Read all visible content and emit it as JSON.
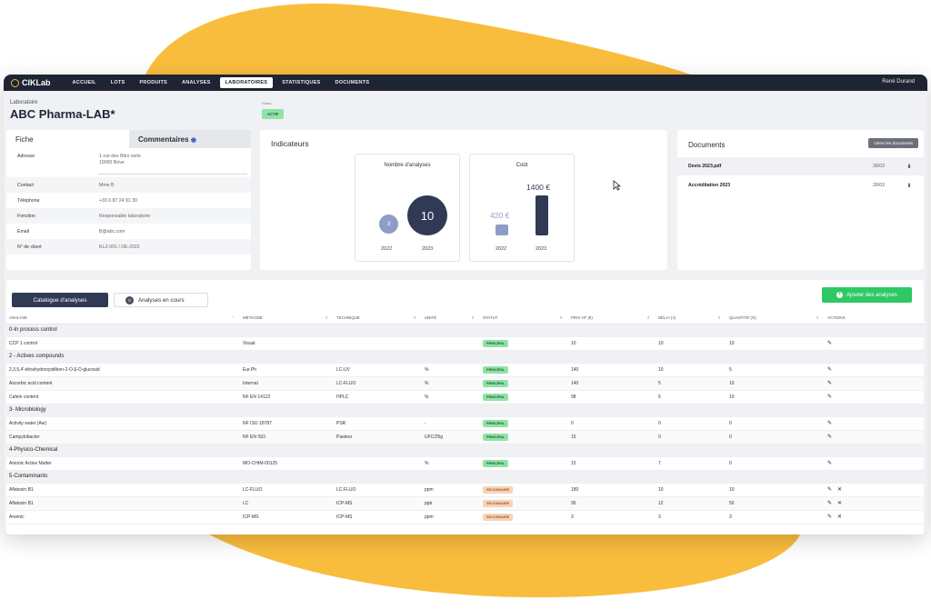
{
  "nav": {
    "brand": "ClKLab",
    "items": [
      "ACCUEIL",
      "LOTS",
      "PRODUITS",
      "ANALYSES",
      "LABORATOIRES",
      "STATISTIQUES",
      "DOCUMENTS"
    ],
    "active": "LABORATOIRES",
    "user": "René Durand"
  },
  "header": {
    "subtitle": "Laboratoire",
    "title": "ABC Pharma-LAB*",
    "status_label": "Statut",
    "status": "ACTIF"
  },
  "fiche": {
    "tab_fiche": "Fiche",
    "tab_comments": "Commentaires",
    "address_label": "Adresse",
    "address_line1": "1 rue des Blés verts",
    "address_line2": "19000 Brive",
    "rows": [
      {
        "k": "Contact",
        "v": "Mme B"
      },
      {
        "k": "Téléphone",
        "v": "+33 6 87 24 91 30"
      },
      {
        "k": "Fonction",
        "v": "Responsable laboratoire"
      },
      {
        "k": "Email",
        "v": "B@abc.com"
      },
      {
        "k": "N° de client",
        "v": "KLZ-001 / DE-2022"
      }
    ]
  },
  "indicateurs": {
    "title": "Indicateurs",
    "nb_title": "Nombre d'analyses",
    "nb_2022": "3",
    "nb_2023": "10",
    "cout_title": "Coût",
    "cout_2022": "420 €",
    "cout_2023": "1400 €",
    "cout_2022_value": 420,
    "cout_2023_value": 1400,
    "year_a": "2022",
    "year_b": "2023"
  },
  "documents": {
    "title": "Documents",
    "manage": "Gérer les documents",
    "items": [
      {
        "name": "Devis 2023.pdf",
        "date": "28/03"
      },
      {
        "name": "Accréditation 2023",
        "date": "28/03"
      }
    ]
  },
  "catalogue": {
    "tab_catalogue": "Catalogue d'analyses",
    "tab_encours": "Analyses en cours",
    "encours_count": "0",
    "add_button": "Ajouter des analyses",
    "columns": [
      "ANALYSE",
      "MÉTHODE",
      "TECHNIQUE",
      "UNITÉ",
      "STATUT",
      "PRIX HT (€)",
      "DÉLAI (J)",
      "QUANTITÉ (G)",
      "ACTIONS"
    ],
    "groups": [
      {
        "name": "0-In process control",
        "rows": [
          {
            "a": "CCP 1 control",
            "m": "Visual",
            "t": "",
            "u": "",
            "s": "PRINCIPAL",
            "p": "10",
            "d": "10",
            "q": "10",
            "del": false
          }
        ]
      },
      {
        "name": "2 - Actives compounds",
        "rows": [
          {
            "a": "2,3,5,4'-tétrahydroxystilben-2-O-β-D-glucosid",
            "m": "Eur.Ph",
            "t": "LC-UV",
            "u": "%",
            "s": "PRINCIPAL",
            "p": "140",
            "d": "10",
            "q": "5",
            "del": false
          },
          {
            "a": "Ascorbic acid content",
            "m": "Internal",
            "t": "LC-FLUO",
            "u": "%",
            "s": "PRINCIPAL",
            "p": "140",
            "d": "5",
            "q": "10",
            "del": false
          },
          {
            "a": "Cafein content",
            "m": "NF EN 14122",
            "t": "HPLC",
            "u": "%",
            "s": "PRINCIPAL",
            "p": "98",
            "d": "5",
            "q": "10",
            "del": false
          }
        ]
      },
      {
        "name": "3- Microbiology",
        "rows": [
          {
            "a": "Activity water (Aw)",
            "m": "NF ISO 18787",
            "t": "PSR",
            "u": "-",
            "s": "PRINCIPAL",
            "p": "0",
            "d": "0",
            "q": "0",
            "del": false
          },
          {
            "a": "Campylobacter",
            "m": "NF EN ISO",
            "t": "Pasteur",
            "u": "UFC/25g",
            "s": "PRINCIPAL",
            "p": "15",
            "d": "0",
            "q": "0",
            "del": false
          }
        ]
      },
      {
        "name": "4-Physico-Chemical",
        "rows": [
          {
            "a": "Anionic Active Matter",
            "m": "MO-CHIM-00125",
            "t": "",
            "u": "%",
            "s": "PRINCIPAL",
            "p": "15",
            "d": "7",
            "q": "0",
            "del": false
          }
        ]
      },
      {
        "name": "5-Contaminants",
        "rows": [
          {
            "a": "Aflatoxin B1",
            "m": "LC-FLUO",
            "t": "LC-FLUO",
            "u": "ppm",
            "s": "SECONDAIRE",
            "p": "180",
            "d": "10",
            "q": "10",
            "del": true
          },
          {
            "a": "Aflatoxin B1",
            "m": "LC",
            "t": "ICP-MS",
            "u": "ppb",
            "s": "SECONDAIRE",
            "p": "95",
            "d": "12",
            "q": "50",
            "del": true
          },
          {
            "a": "Arsenic",
            "m": "ICP-MS",
            "t": "ICP-MS",
            "u": "ppm",
            "s": "SECONDAIRE",
            "p": "3",
            "d": "3",
            "q": "3",
            "del": true
          }
        ]
      }
    ]
  },
  "icons": {
    "comment": "comment-icon",
    "download": "download-icon",
    "edit": "edit-icon",
    "delete": "delete-icon",
    "sort": "sort-icon",
    "plus": "plus-icon"
  },
  "colors": {
    "accent_blob": "#f9bd3d",
    "nav_bg": "#1f2433",
    "primary_dark": "#303a55",
    "green": "#2ec865",
    "badge_principal": "#8fe3a7",
    "badge_secondaire": "#f8d2b8"
  }
}
